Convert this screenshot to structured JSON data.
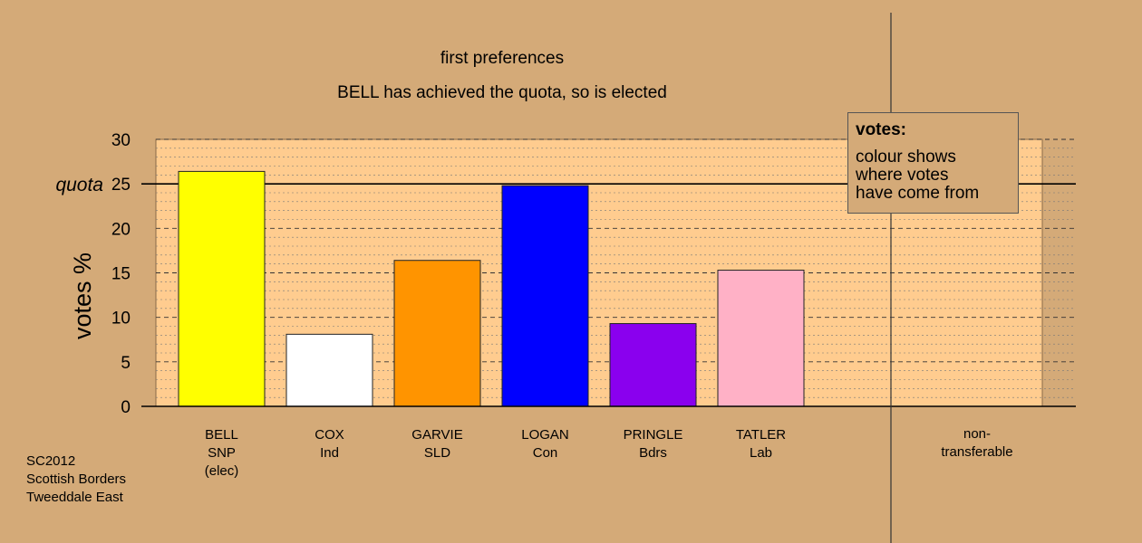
{
  "title_lines": [
    "first preferences",
    "BELL has achieved the quota, so is elected"
  ],
  "legend": {
    "title": "votes:",
    "lines": [
      "colour shows",
      "where votes",
      "have come from"
    ]
  },
  "source_lines": [
    "SC2012",
    "Scottish Borders",
    "Tweeddale East"
  ],
  "chart_data": {
    "type": "bar",
    "title": "first preferences",
    "subtitle": "BELL has achieved the quota, so is elected",
    "ylabel": "votes %",
    "ylim": [
      0,
      30
    ],
    "yticks": [
      0,
      5,
      10,
      15,
      20,
      25,
      30
    ],
    "quota": 25,
    "quota_label": "quota",
    "grid": true,
    "categories": [
      {
        "name": "BELL",
        "party": "SNP",
        "note": "(elec)",
        "value": 26.4,
        "color": "#ffff00"
      },
      {
        "name": "COX",
        "party": "Ind",
        "note": "",
        "value": 8.1,
        "color": "#ffffff"
      },
      {
        "name": "GARVIE",
        "party": "SLD",
        "note": "",
        "value": 16.4,
        "color": "#ff9400"
      },
      {
        "name": "LOGAN",
        "party": "Con",
        "note": "",
        "value": 24.8,
        "color": "#0000ff"
      },
      {
        "name": "PRINGLE",
        "party": "Bdrs",
        "note": "",
        "value": 9.3,
        "color": "#8a00ee"
      },
      {
        "name": "TATLER",
        "party": "Lab",
        "note": "",
        "value": 15.3,
        "color": "#ffb1c6"
      }
    ],
    "extra_category": {
      "label_lines": [
        "non-",
        "transferable"
      ],
      "value": 0
    }
  }
}
